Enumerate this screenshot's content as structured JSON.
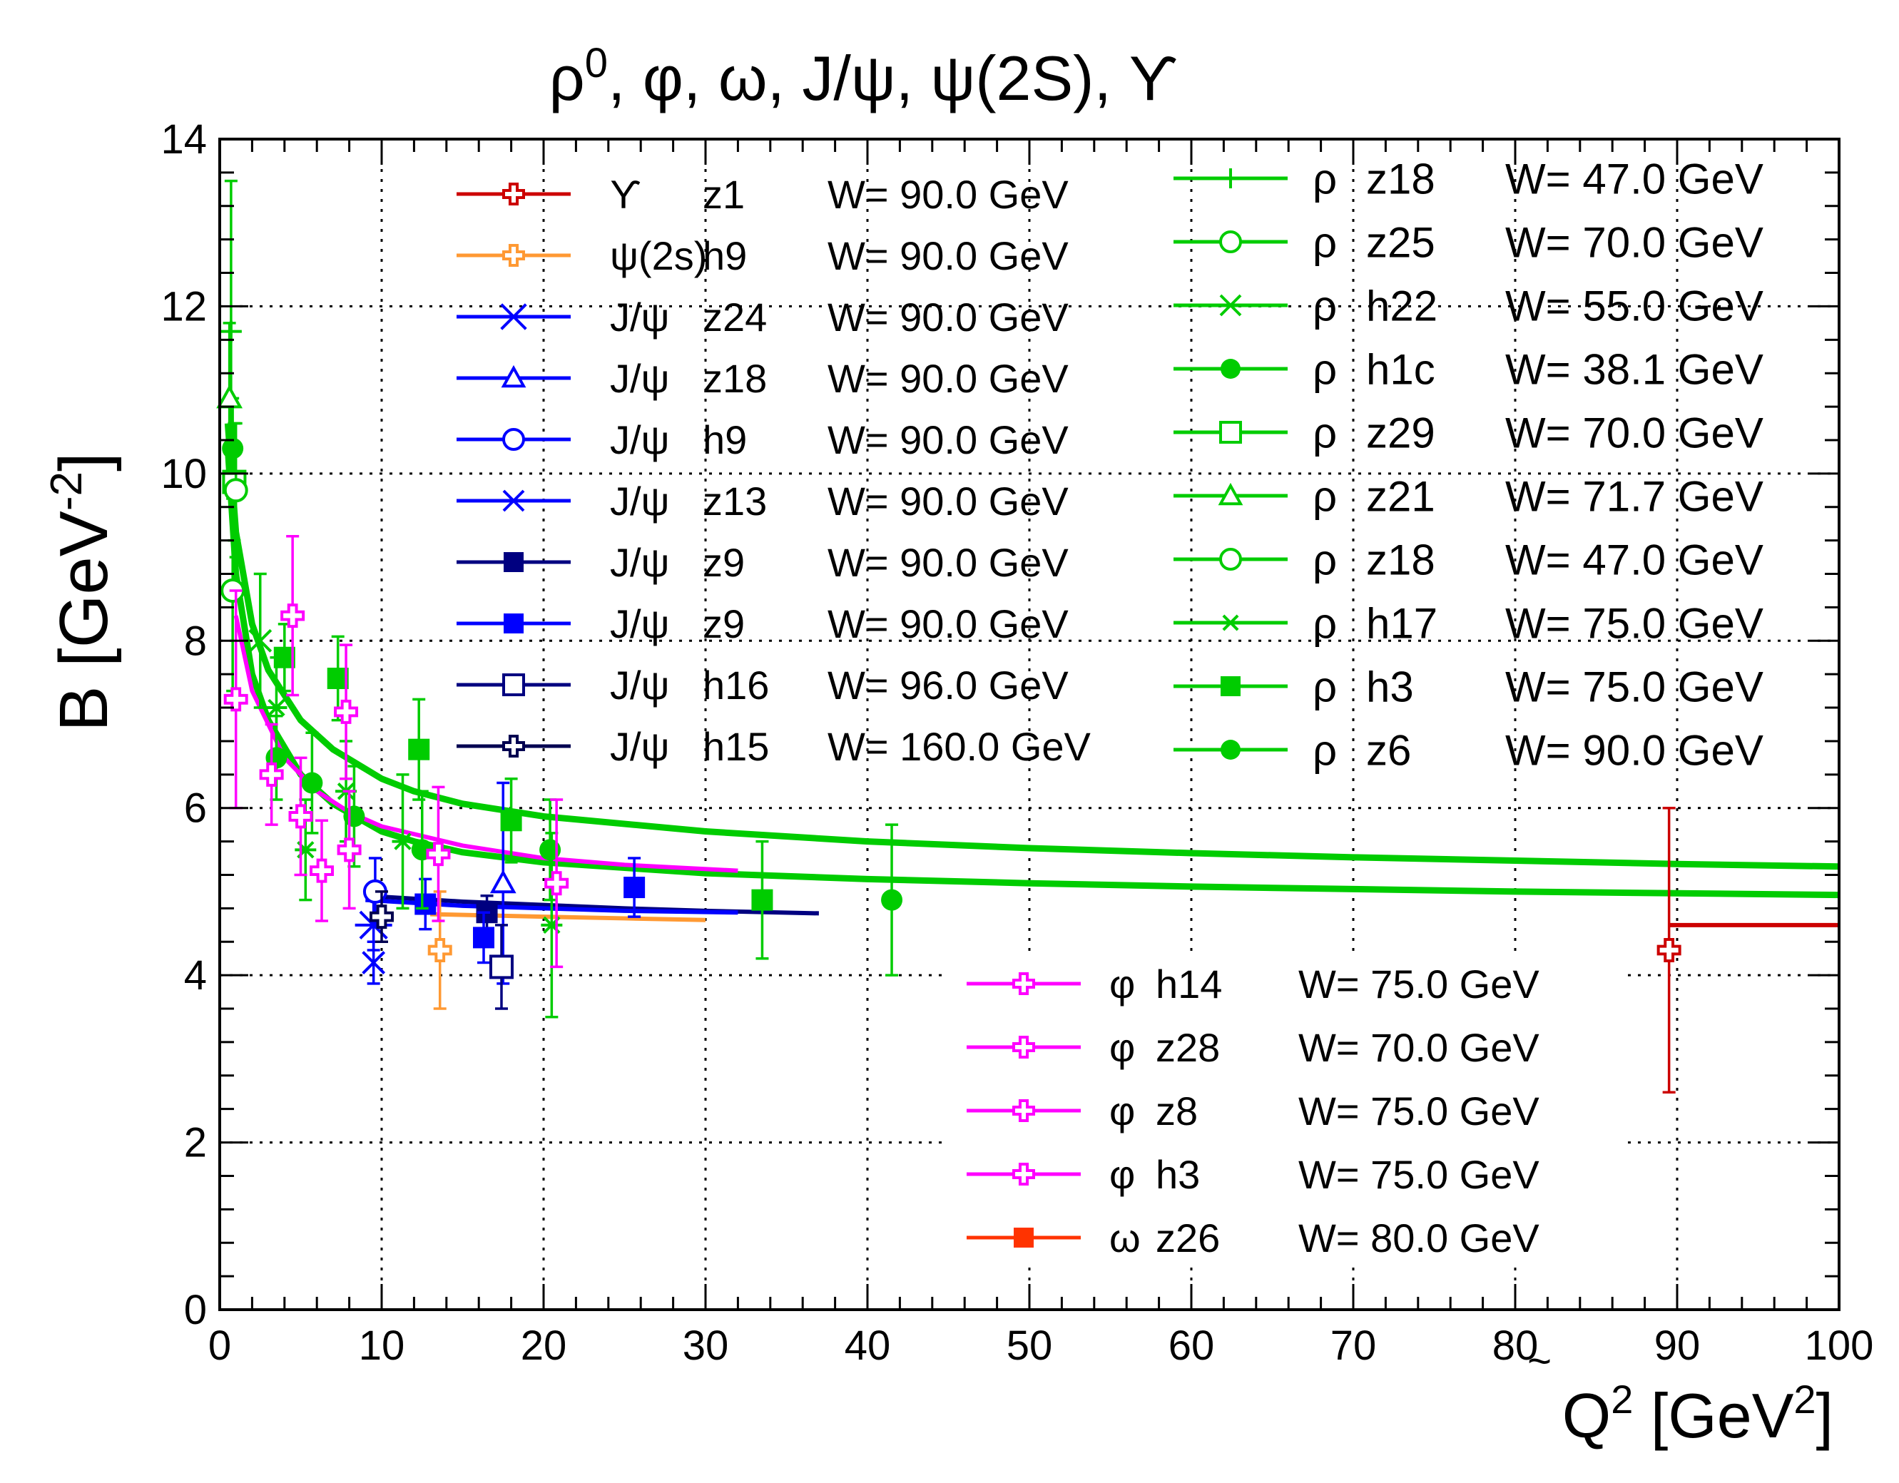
{
  "chart_data": {
    "type": "scatter",
    "title": "ρ⁰, φ, ω, J/ψ, ψ(2S), ϒ",
    "title_parts": [
      "ρ",
      "0",
      ", φ, ω, J/ψ, ψ(2S), ϒ"
    ],
    "ylabel_parts": [
      "B [GeV",
      "-2",
      "]"
    ],
    "xlabel_parts": [
      "Q",
      "2",
      "  [GeV",
      "2",
      "]"
    ],
    "xlim": [
      0,
      100
    ],
    "ylim": [
      0,
      14
    ],
    "xticks": [
      "0",
      "10",
      "20",
      "30",
      "40",
      "50",
      "60",
      "70",
      "80",
      "90",
      "100"
    ],
    "yticks": [
      "0",
      "2",
      "4",
      "6",
      "8",
      "10",
      "12",
      "14"
    ],
    "tilde_label": "~",
    "grid": true,
    "colors": {
      "green": "#00cc00",
      "magenta": "#ff00ff",
      "blue": "#0000ff",
      "navy": "#000080",
      "darknavy": "#000050",
      "orange": "#ff9933",
      "red": "#cc0000",
      "red_omega": "#ff3300"
    },
    "fit_curves": [
      {
        "name": "rho fit A",
        "color": "#00cc00",
        "x": [
          0.5,
          1,
          2,
          3,
          5,
          7,
          10,
          12,
          15,
          20,
          30,
          40,
          50,
          60,
          70,
          80,
          90,
          100
        ],
        "y": [
          10.6,
          9.3,
          8.2,
          7.65,
          7.05,
          6.7,
          6.35,
          6.2,
          6.05,
          5.9,
          5.72,
          5.6,
          5.52,
          5.46,
          5.41,
          5.37,
          5.33,
          5.3
        ]
      },
      {
        "name": "rho fit B",
        "color": "#00cc00",
        "x": [
          0.5,
          1,
          2,
          3,
          5,
          7,
          10,
          12,
          15,
          20,
          30,
          40,
          50,
          60,
          70,
          80,
          90,
          100
        ],
        "y": [
          10.3,
          8.8,
          7.6,
          7.05,
          6.4,
          6.05,
          5.72,
          5.6,
          5.47,
          5.35,
          5.22,
          5.15,
          5.1,
          5.06,
          5.03,
          5.0,
          4.98,
          4.96
        ]
      },
      {
        "name": "phi fit",
        "color": "#ff00ff",
        "x": [
          1,
          2,
          4,
          6,
          8,
          10,
          15,
          20,
          25,
          32
        ],
        "y": [
          8.3,
          7.4,
          6.6,
          6.2,
          5.95,
          5.78,
          5.55,
          5.4,
          5.32,
          5.25
        ]
      },
      {
        "name": "J/psi fit",
        "color": "#000080",
        "x": [
          9,
          15,
          20,
          25,
          30,
          37
        ],
        "y": [
          4.95,
          4.88,
          4.84,
          4.8,
          4.77,
          4.74
        ]
      },
      {
        "name": "J/psi fit 2",
        "color": "#0000ff",
        "x": [
          9,
          15,
          20,
          25,
          32
        ],
        "y": [
          4.9,
          4.83,
          4.8,
          4.77,
          4.75
        ]
      },
      {
        "name": "psi(2s) fit",
        "color": "#ff9933",
        "x": [
          13,
          20,
          25,
          30
        ],
        "y": [
          4.73,
          4.7,
          4.68,
          4.66
        ]
      },
      {
        "name": "Upsilon fit",
        "color": "#cc0000",
        "x": [
          89.5,
          100
        ],
        "y": [
          4.6,
          4.6
        ]
      }
    ],
    "series": [
      {
        "name": "Upsilon z1",
        "color": "#cc0000",
        "marker": "open-cross",
        "points": [
          {
            "x": 89.5,
            "y": 4.3,
            "e": 1.7
          }
        ]
      },
      {
        "name": "psi(2s) h9",
        "color": "#ff9933",
        "marker": "open-cross",
        "points": [
          {
            "x": 13.6,
            "y": 4.3,
            "e": 0.7
          }
        ]
      },
      {
        "name": "J/psi z24",
        "color": "#0000ff",
        "marker": "asterisk",
        "points": [
          {
            "x": 9.5,
            "y": 4.6,
            "e": 0.3
          }
        ]
      },
      {
        "name": "J/psi z18",
        "color": "#0000ff",
        "marker": "open-triangle",
        "points": [
          {
            "x": 17.5,
            "y": 5.1,
            "e": 1.2
          }
        ]
      },
      {
        "name": "J/psi h9",
        "color": "#0000ff",
        "marker": "open-circle",
        "points": [
          {
            "x": 9.6,
            "y": 5.0,
            "e": 0.4
          }
        ]
      },
      {
        "name": "J/psi z13",
        "color": "#0000ff",
        "marker": "x",
        "points": [
          {
            "x": 9.5,
            "y": 4.15,
            "e": 0.25
          }
        ]
      },
      {
        "name": "J/psi z9 (navy)",
        "color": "#000080",
        "marker": "filled-square",
        "points": [
          {
            "x": 16.5,
            "y": 4.75,
            "e": 0.2
          }
        ]
      },
      {
        "name": "J/psi z9",
        "color": "#0000ff",
        "marker": "filled-square",
        "points": [
          {
            "x": 12.7,
            "y": 4.85,
            "e": 0.3
          },
          {
            "x": 16.3,
            "y": 4.45,
            "e": 0.3
          },
          {
            "x": 25.6,
            "y": 5.05,
            "e": 0.35
          }
        ]
      },
      {
        "name": "J/psi h16",
        "color": "#000080",
        "marker": "open-square",
        "points": [
          {
            "x": 17.4,
            "y": 4.1,
            "e": 0.5
          }
        ]
      },
      {
        "name": "J/psi h15",
        "color": "#000050",
        "marker": "open-cross",
        "points": [
          {
            "x": 10.0,
            "y": 4.7,
            "e": 0.3
          }
        ]
      },
      {
        "name": "rho z18 (plus)",
        "color": "#00cc00",
        "marker": "plus",
        "points": [
          {
            "x": 0.7,
            "y": 11.7,
            "e": 1.8
          }
        ]
      },
      {
        "name": "rho z25",
        "color": "#00cc00",
        "marker": "open-circle",
        "points": [
          {
            "x": 0.8,
            "y": 8.6,
            "e": 1.2
          }
        ]
      },
      {
        "name": "rho h22",
        "color": "#00cc00",
        "marker": "x",
        "points": [
          {
            "x": 2.5,
            "y": 8.0,
            "e": 0.8
          }
        ]
      },
      {
        "name": "rho h1c",
        "color": "#00cc00",
        "marker": "filled-circle",
        "points": [
          {
            "x": 0.8,
            "y": 10.3,
            "e": 0.6
          },
          {
            "x": 5.7,
            "y": 6.3,
            "e": 0.6
          },
          {
            "x": 8.3,
            "y": 5.9,
            "e": 0.6
          },
          {
            "x": 12.5,
            "y": 5.5,
            "e": 0.7
          }
        ]
      },
      {
        "name": "rho z29",
        "color": "#00cc00",
        "marker": "open-square",
        "points": [
          {
            "x": 0.9,
            "y": 9.9,
            "e": 0.7
          }
        ]
      },
      {
        "name": "rho z21",
        "color": "#00cc00",
        "marker": "open-triangle",
        "points": [
          {
            "x": 0.6,
            "y": 10.9,
            "e": 0.9
          }
        ]
      },
      {
        "name": "rho z18",
        "color": "#00cc00",
        "marker": "open-circle",
        "points": [
          {
            "x": 1.0,
            "y": 9.8,
            "e": 0.8
          }
        ]
      },
      {
        "name": "rho h17",
        "color": "#00cc00",
        "marker": "asterisk",
        "points": [
          {
            "x": 3.5,
            "y": 7.2,
            "e": 0.6
          },
          {
            "x": 5.3,
            "y": 5.5,
            "e": 0.6
          },
          {
            "x": 7.8,
            "y": 6.2,
            "e": 0.6
          },
          {
            "x": 11.3,
            "y": 5.6,
            "e": 0.8
          },
          {
            "x": 20.5,
            "y": 4.6,
            "e": 1.1
          }
        ]
      },
      {
        "name": "rho h3",
        "color": "#00cc00",
        "marker": "filled-square",
        "points": [
          {
            "x": 4.0,
            "y": 7.8,
            "e": 0.4
          },
          {
            "x": 7.3,
            "y": 7.55,
            "e": 0.5
          },
          {
            "x": 12.3,
            "y": 6.7,
            "e": 0.6
          },
          {
            "x": 18.0,
            "y": 5.85,
            "e": 0.5
          },
          {
            "x": 33.5,
            "y": 4.9,
            "e": 0.7
          }
        ]
      },
      {
        "name": "rho z6",
        "color": "#00cc00",
        "marker": "filled-circle",
        "points": [
          {
            "x": 3.5,
            "y": 6.6,
            "e": 0.5
          },
          {
            "x": 20.4,
            "y": 5.5,
            "e": 0.6
          },
          {
            "x": 41.5,
            "y": 4.9,
            "e": 0.9
          }
        ]
      },
      {
        "name": "phi h14",
        "color": "#ff00ff",
        "marker": "open-cross",
        "points": [
          {
            "x": 1.0,
            "y": 7.3,
            "e": 1.3
          },
          {
            "x": 4.5,
            "y": 8.3,
            "e": 0.95
          }
        ]
      },
      {
        "name": "phi z28",
        "color": "#ff00ff",
        "marker": "open-cross",
        "points": [
          {
            "x": 3.2,
            "y": 6.4,
            "e": 0.6
          },
          {
            "x": 6.3,
            "y": 5.25,
            "e": 0.6
          },
          {
            "x": 7.8,
            "y": 7.15,
            "e": 0.8
          },
          {
            "x": 13.5,
            "y": 5.45,
            "e": 0.8
          }
        ]
      },
      {
        "name": "phi z8",
        "color": "#ff00ff",
        "marker": "open-cross",
        "points": [
          {
            "x": 8.0,
            "y": 5.5,
            "e": 0.7
          },
          {
            "x": 20.8,
            "y": 5.1,
            "e": 1.0
          }
        ]
      },
      {
        "name": "phi h3",
        "color": "#ff00ff",
        "marker": "open-cross",
        "points": [
          {
            "x": 5.0,
            "y": 5.9,
            "e": 0.7
          }
        ]
      }
    ],
    "legend_left": [
      {
        "sym": "ϒ",
        "code": "z1",
        "w": "W=  90.0 GeV",
        "color": "#cc0000",
        "marker": "open-cross"
      },
      {
        "sym": "ψ(2s)",
        "code": "h9",
        "w": "W=  90.0 GeV",
        "color": "#ff9933",
        "marker": "open-cross"
      },
      {
        "sym": "J/ψ",
        "code": "z24",
        "w": "W=  90.0 GeV",
        "color": "#0000ff",
        "marker": "asterisk"
      },
      {
        "sym": "J/ψ",
        "code": "z18",
        "w": "W=  90.0 GeV",
        "color": "#0000ff",
        "marker": "open-triangle"
      },
      {
        "sym": "J/ψ",
        "code": "h9",
        "w": "W=  90.0 GeV",
        "color": "#0000ff",
        "marker": "open-circle"
      },
      {
        "sym": "J/ψ",
        "code": "z13",
        "w": "W=  90.0 GeV",
        "color": "#0000ff",
        "marker": "x"
      },
      {
        "sym": "J/ψ",
        "code": "z9",
        "w": "W=  90.0 GeV",
        "color": "#000080",
        "marker": "filled-square"
      },
      {
        "sym": "J/ψ",
        "code": "z9",
        "w": "W=  90.0 GeV",
        "color": "#0000ff",
        "marker": "filled-square"
      },
      {
        "sym": "J/ψ",
        "code": "h16",
        "w": "W=  96.0 GeV",
        "color": "#000080",
        "marker": "open-square"
      },
      {
        "sym": "J/ψ",
        "code": "h15",
        "w": "W= 160.0 GeV",
        "color": "#000050",
        "marker": "open-cross"
      }
    ],
    "legend_right": [
      {
        "sym": "ρ",
        "code": "z18",
        "w": "W=  47.0 GeV",
        "color": "#00cc00",
        "marker": "plus"
      },
      {
        "sym": "ρ",
        "code": "z25",
        "w": "W=  70.0 GeV",
        "color": "#00cc00",
        "marker": "open-circle"
      },
      {
        "sym": "ρ",
        "code": "h22",
        "w": "W=  55.0 GeV",
        "color": "#00cc00",
        "marker": "x"
      },
      {
        "sym": "ρ",
        "code": "h1c",
        "w": "W=  38.1 GeV",
        "color": "#00cc00",
        "marker": "filled-circle"
      },
      {
        "sym": "ρ",
        "code": "z29",
        "w": "W=  70.0 GeV",
        "color": "#00cc00",
        "marker": "open-square"
      },
      {
        "sym": "ρ",
        "code": "z21",
        "w": "W=  71.7 GeV",
        "color": "#00cc00",
        "marker": "open-triangle"
      },
      {
        "sym": "ρ",
        "code": "z18",
        "w": "W=  47.0 GeV",
        "color": "#00cc00",
        "marker": "open-circle"
      },
      {
        "sym": "ρ",
        "code": "h17",
        "w": "W=  75.0 GeV",
        "color": "#00cc00",
        "marker": "asterisk"
      },
      {
        "sym": "ρ",
        "code": "h3",
        "w": "W=  75.0 GeV",
        "color": "#00cc00",
        "marker": "filled-square"
      },
      {
        "sym": "ρ",
        "code": "z6",
        "w": "W=  90.0 GeV",
        "color": "#00cc00",
        "marker": "filled-circle"
      }
    ],
    "legend_bottom": [
      {
        "sym": "φ",
        "code": "h14",
        "w": "W=  75.0 GeV",
        "color": "#ff00ff",
        "marker": "open-cross"
      },
      {
        "sym": "φ",
        "code": "z28",
        "w": "W=  70.0 GeV",
        "color": "#ff00ff",
        "marker": "open-cross"
      },
      {
        "sym": "φ",
        "code": "z8",
        "w": "W=  75.0 GeV",
        "color": "#ff00ff",
        "marker": "open-cross"
      },
      {
        "sym": "φ",
        "code": "h3",
        "w": "W=  75.0 GeV",
        "color": "#ff00ff",
        "marker": "open-cross"
      },
      {
        "sym": "ω",
        "code": "z26",
        "w": "W=  80.0 GeV",
        "color": "#ff3300",
        "marker": "filled-square"
      }
    ]
  }
}
